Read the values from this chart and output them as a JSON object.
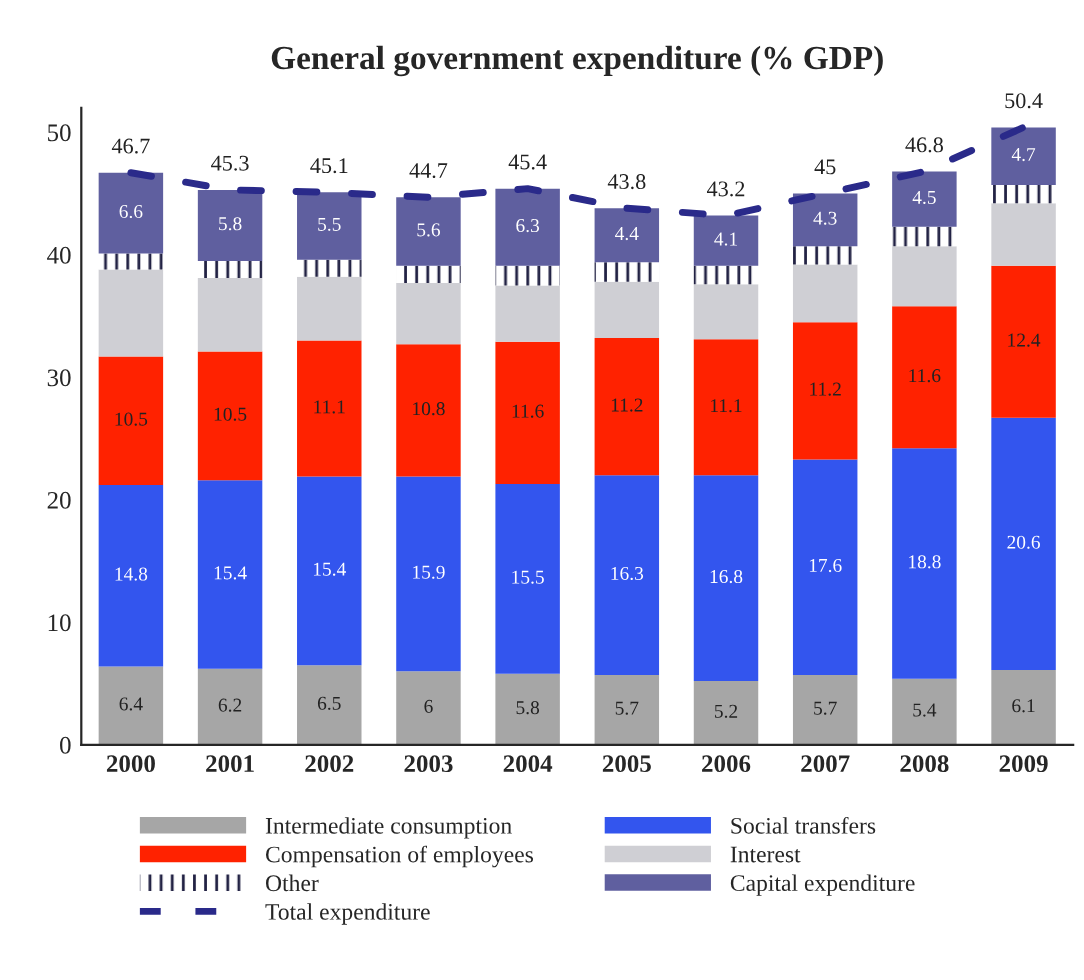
{
  "chart_data": {
    "type": "bar",
    "stacked": true,
    "title": "General government expenditure (% GDP)",
    "categories": [
      "2000",
      "2001",
      "2002",
      "2003",
      "2004",
      "2005",
      "2006",
      "2007",
      "2008",
      "2009"
    ],
    "series": [
      {
        "name": "Intermediate consumption",
        "color": "#a6a6a6",
        "values": [
          6.4,
          6.2,
          6.5,
          6,
          5.8,
          5.7,
          5.2,
          5.7,
          5.4,
          6.1
        ],
        "value_labels": [
          "6.4",
          "6.2",
          "6.5",
          "6",
          "5.8",
          "5.7",
          "5.2",
          "5.7",
          "5.4",
          "6.1"
        ]
      },
      {
        "name": "Social transfers",
        "color": "#3355ee",
        "values": [
          14.8,
          15.4,
          15.4,
          15.9,
          15.5,
          16.3,
          16.8,
          17.6,
          18.8,
          20.6
        ],
        "value_labels": [
          "14.8",
          "15.4",
          "15.4",
          "15.9",
          "15.5",
          "16.3",
          "16.8",
          "17.6",
          "18.8",
          "20.6"
        ]
      },
      {
        "name": "Compensation of employees",
        "color": "#ff2200",
        "values": [
          10.5,
          10.5,
          11.1,
          10.8,
          11.6,
          11.2,
          11.1,
          11.2,
          11.6,
          12.4
        ],
        "value_labels": [
          "10.5",
          "10.5",
          "11.1",
          "10.8",
          "11.6",
          "11.2",
          "11.1",
          "11.2",
          "11.6",
          "12.4"
        ]
      },
      {
        "name": "Interest",
        "color": "#cfcfd4",
        "values": [
          7.1,
          6.0,
          5.2,
          5.0,
          4.6,
          4.6,
          4.5,
          4.7,
          4.9,
          5.1
        ]
      },
      {
        "name": "Other",
        "color": "#ffffff",
        "values": [
          1.3,
          1.4,
          1.4,
          1.4,
          1.6,
          1.6,
          1.5,
          1.5,
          1.6,
          1.5
        ]
      },
      {
        "name": "Capital expenditure",
        "color": "#5f5f9f",
        "values": [
          6.6,
          5.8,
          5.5,
          5.6,
          6.3,
          4.4,
          4.1,
          4.3,
          4.5,
          4.7
        ],
        "value_labels": [
          "6.6",
          "5.8",
          "5.5",
          "5.6",
          "6.3",
          "4.4",
          "4.1",
          "4.3",
          "4.5",
          "4.7"
        ]
      },
      {
        "name": "Total expenditure",
        "type": "line",
        "line_style": "dashed",
        "color": "#2a2a8a",
        "values": [
          46.7,
          45.3,
          45.1,
          44.7,
          45.4,
          43.8,
          43.2,
          45,
          46.8,
          50.4
        ],
        "value_labels": [
          "46.7",
          "45.3",
          "45.1",
          "44.7",
          "45.4",
          "43.8",
          "43.2",
          "45",
          "46.8",
          "50.4"
        ]
      }
    ],
    "ylim": [
      0,
      52
    ],
    "yticks": [
      0,
      10,
      20,
      30,
      40,
      50
    ],
    "grid": false,
    "legend": "bottom"
  }
}
